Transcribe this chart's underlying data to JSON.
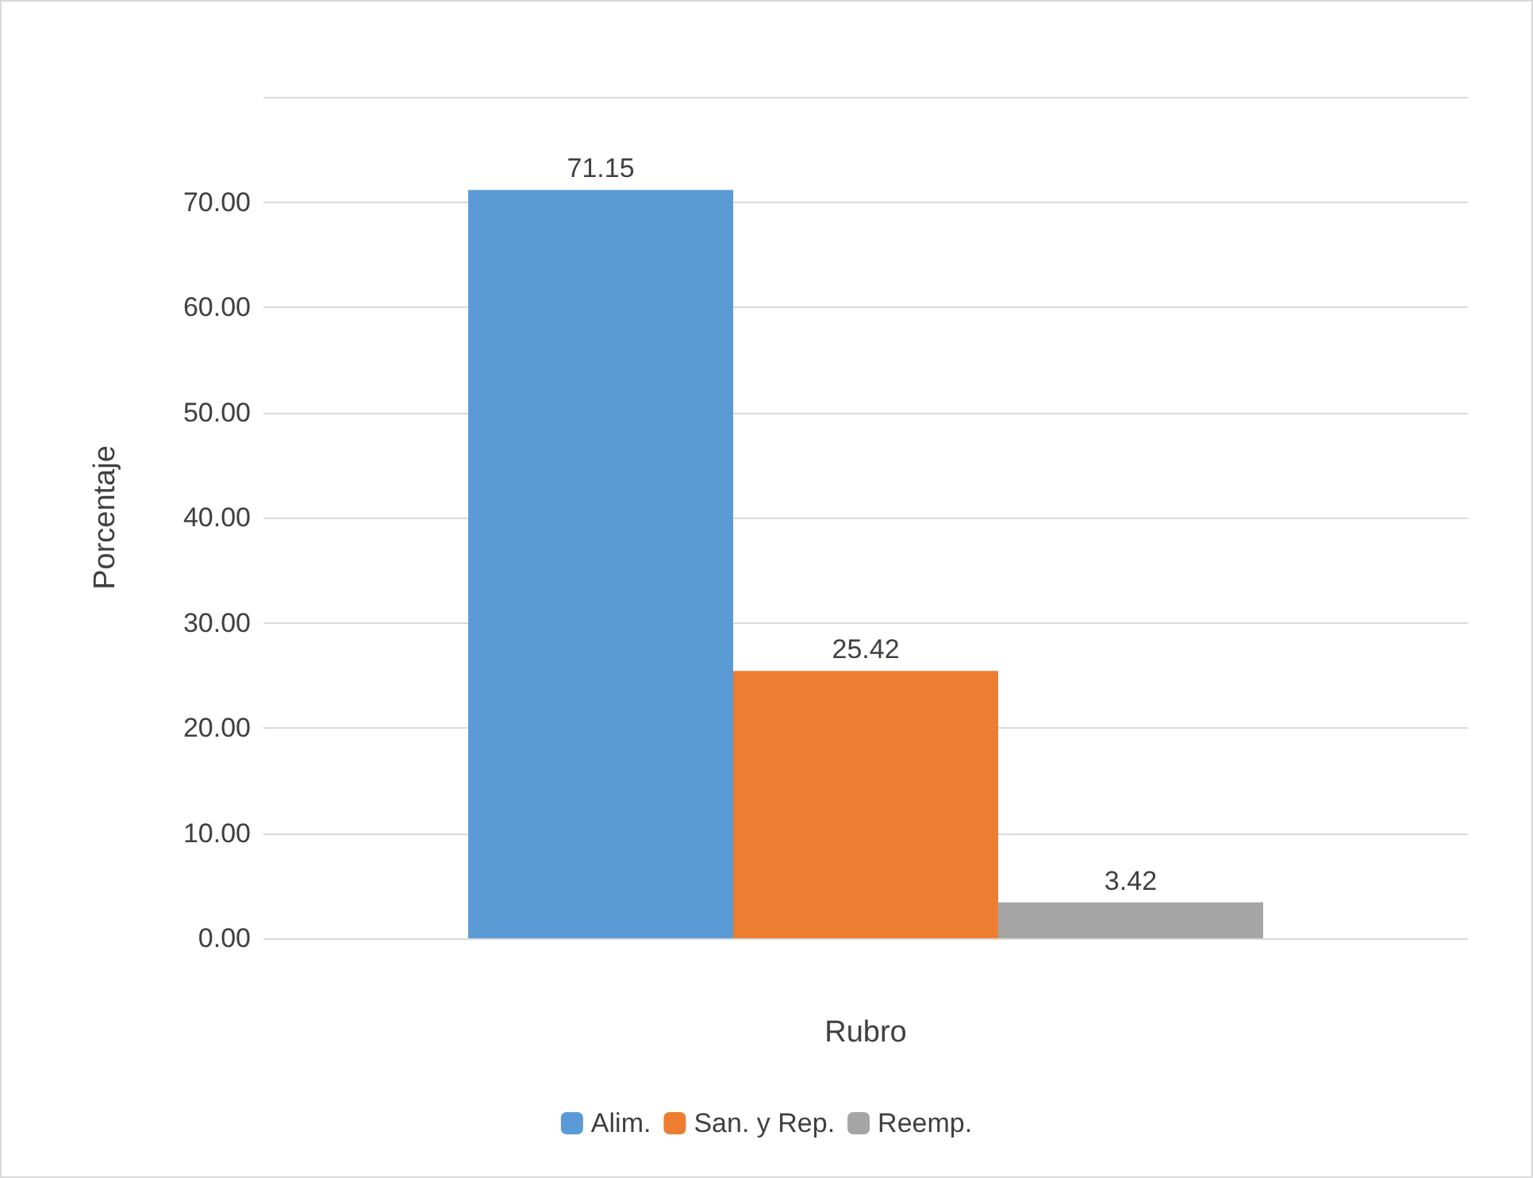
{
  "chart_data": {
    "type": "bar",
    "xlabel": "Rubro",
    "ylabel": "Porcentaje",
    "categories": [
      null
    ],
    "series": [
      {
        "name": "Alim.",
        "color": "#5b9bd5",
        "values": [
          71.15
        ]
      },
      {
        "name": "San. y Rep.",
        "color": "#ed7d31",
        "values": [
          25.42
        ]
      },
      {
        "name": "Reemp.",
        "color": "#a5a5a5",
        "values": [
          3.42
        ]
      }
    ],
    "ylim": [
      0,
      80
    ],
    "yticks": [
      {
        "value": 0,
        "label": "0.00"
      },
      {
        "value": 10,
        "label": "10.00"
      },
      {
        "value": 20,
        "label": "20.00"
      },
      {
        "value": 30,
        "label": "30.00"
      },
      {
        "value": 40,
        "label": "40.00"
      },
      {
        "value": 50,
        "label": "50.00"
      },
      {
        "value": 60,
        "label": "60.00"
      },
      {
        "value": 70,
        "label": "70.00"
      },
      {
        "value": 80,
        "label": null
      }
    ],
    "grid": "y",
    "legend": "bottom",
    "data_labels": true
  }
}
